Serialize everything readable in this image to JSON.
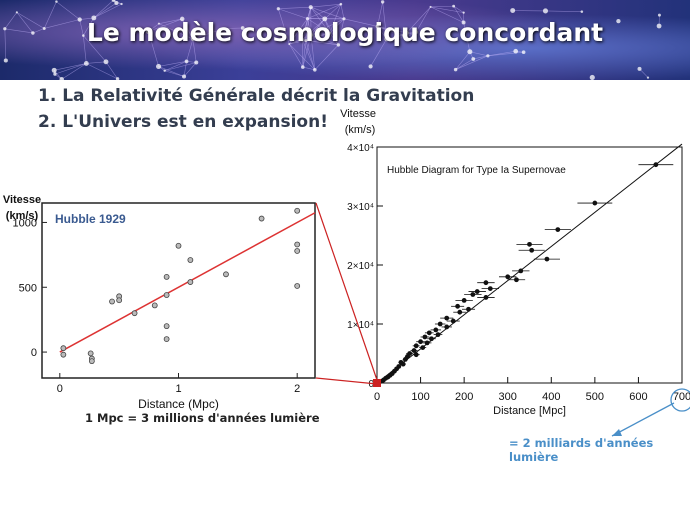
{
  "slide": {
    "title": "Le modèle cosmologique concordant",
    "points": [
      "1. La Relativité Générale décrit la Gravitation",
      "2. L'Univers est en expansion!"
    ],
    "conversion_note": "1 Mpc = 3 millions d'années lumière",
    "distance_note": "= 2 milliards d'années lumière",
    "colors": {
      "title_text": "#ffffff",
      "points_text": "#333d4f",
      "fit_line_1929": "#dd3333",
      "note_blue": "#4a8fc8",
      "connector": "#cc2222"
    }
  },
  "chart_data": [
    {
      "type": "scatter",
      "title": "Hubble 1929",
      "xlabel": "Distance (Mpc)",
      "ylabel": "Vitesse (km/s)",
      "xlim": [
        -0.15,
        2.15
      ],
      "ylim": [
        -200,
        1150
      ],
      "xticks": [
        0,
        1,
        2
      ],
      "yticks": [
        0,
        500,
        1000
      ],
      "points": [
        {
          "x": 0.03,
          "y": 30
        },
        {
          "x": 0.03,
          "y": -20
        },
        {
          "x": 0.26,
          "y": -10
        },
        {
          "x": 0.27,
          "y": -50
        },
        {
          "x": 0.27,
          "y": -70
        },
        {
          "x": 0.44,
          "y": 390
        },
        {
          "x": 0.5,
          "y": 430
        },
        {
          "x": 0.5,
          "y": 400
        },
        {
          "x": 0.63,
          "y": 300
        },
        {
          "x": 0.8,
          "y": 360
        },
        {
          "x": 0.9,
          "y": 580
        },
        {
          "x": 0.9,
          "y": 440
        },
        {
          "x": 0.9,
          "y": 200
        },
        {
          "x": 0.9,
          "y": 100
        },
        {
          "x": 1.0,
          "y": 820
        },
        {
          "x": 1.1,
          "y": 710
        },
        {
          "x": 1.1,
          "y": 540
        },
        {
          "x": 1.4,
          "y": 600
        },
        {
          "x": 1.7,
          "y": 1030
        },
        {
          "x": 2.0,
          "y": 1090
        },
        {
          "x": 2.0,
          "y": 830
        },
        {
          "x": 2.0,
          "y": 780
        },
        {
          "x": 2.0,
          "y": 510
        }
      ],
      "fit_line": {
        "x": [
          0.0,
          2.15
        ],
        "y": [
          0,
          1075
        ]
      }
    },
    {
      "type": "scatter",
      "title": "Hubble Diagram for Type Ia Supernovae",
      "xlabel": "Distance [Mpc]",
      "ylabel": "Vitesse (km/s)",
      "xlim": [
        0,
        700
      ],
      "ylim": [
        0,
        40000
      ],
      "xticks": [
        0,
        100,
        200,
        300,
        400,
        500,
        600,
        700
      ],
      "yticks": [
        {
          "value": 0,
          "label": "0"
        },
        {
          "value": 10000,
          "label": "1×10⁴"
        },
        {
          "value": 20000,
          "label": "2×10⁴"
        },
        {
          "value": 30000,
          "label": "3×10⁴"
        },
        {
          "value": 40000,
          "label": "4×10⁴"
        }
      ],
      "points": [
        {
          "x": 640,
          "y": 37000,
          "err": 40
        },
        {
          "x": 500,
          "y": 30500,
          "err": 40
        },
        {
          "x": 415,
          "y": 26000,
          "err": 30
        },
        {
          "x": 350,
          "y": 23500,
          "err": 30
        },
        {
          "x": 355,
          "y": 22500,
          "err": 30
        },
        {
          "x": 390,
          "y": 21000,
          "err": 30
        },
        {
          "x": 330,
          "y": 19000,
          "err": 20
        },
        {
          "x": 300,
          "y": 18000,
          "err": 20
        },
        {
          "x": 320,
          "y": 17500,
          "err": 20
        },
        {
          "x": 250,
          "y": 17000,
          "err": 20
        },
        {
          "x": 260,
          "y": 16000,
          "err": 20
        },
        {
          "x": 230,
          "y": 15500,
          "err": 20
        },
        {
          "x": 220,
          "y": 15000,
          "err": 20
        },
        {
          "x": 250,
          "y": 14500,
          "err": 20
        },
        {
          "x": 200,
          "y": 14000,
          "err": 20
        },
        {
          "x": 185,
          "y": 13000,
          "err": 15
        },
        {
          "x": 210,
          "y": 12500,
          "err": 15
        },
        {
          "x": 190,
          "y": 12000,
          "err": 15
        },
        {
          "x": 160,
          "y": 11000,
          "err": 15
        },
        {
          "x": 175,
          "y": 10500,
          "err": 15
        },
        {
          "x": 145,
          "y": 10000,
          "err": 12
        },
        {
          "x": 160,
          "y": 9500,
          "err": 12
        },
        {
          "x": 135,
          "y": 9000,
          "err": 12
        },
        {
          "x": 120,
          "y": 8500,
          "err": 10
        },
        {
          "x": 140,
          "y": 8200,
          "err": 10
        },
        {
          "x": 110,
          "y": 7800,
          "err": 10
        },
        {
          "x": 125,
          "y": 7500,
          "err": 10
        },
        {
          "x": 100,
          "y": 7000,
          "err": 10
        },
        {
          "x": 115,
          "y": 6800,
          "err": 10
        },
        {
          "x": 90,
          "y": 6300,
          "err": 8
        },
        {
          "x": 105,
          "y": 6000,
          "err": 8
        },
        {
          "x": 85,
          "y": 5500,
          "err": 8
        },
        {
          "x": 75,
          "y": 5000,
          "err": 8
        },
        {
          "x": 90,
          "y": 4800,
          "err": 8
        },
        {
          "x": 70,
          "y": 4500,
          "err": 6
        },
        {
          "x": 65,
          "y": 4000,
          "err": 6
        },
        {
          "x": 55,
          "y": 3500,
          "err": 6
        },
        {
          "x": 60,
          "y": 3200,
          "err": 6
        },
        {
          "x": 50,
          "y": 2800,
          "err": 5
        },
        {
          "x": 45,
          "y": 2400,
          "err": 5
        },
        {
          "x": 40,
          "y": 2000,
          "err": 5
        },
        {
          "x": 35,
          "y": 1600,
          "err": 4
        },
        {
          "x": 30,
          "y": 1300,
          "err": 4
        },
        {
          "x": 25,
          "y": 1000,
          "err": 3
        },
        {
          "x": 20,
          "y": 800,
          "err": 3
        },
        {
          "x": 15,
          "y": 500,
          "err": 2
        },
        {
          "x": 10,
          "y": 300,
          "err": 2
        }
      ],
      "fit_line": {
        "x": [
          0,
          700
        ],
        "y": [
          0,
          40500
        ]
      }
    }
  ]
}
